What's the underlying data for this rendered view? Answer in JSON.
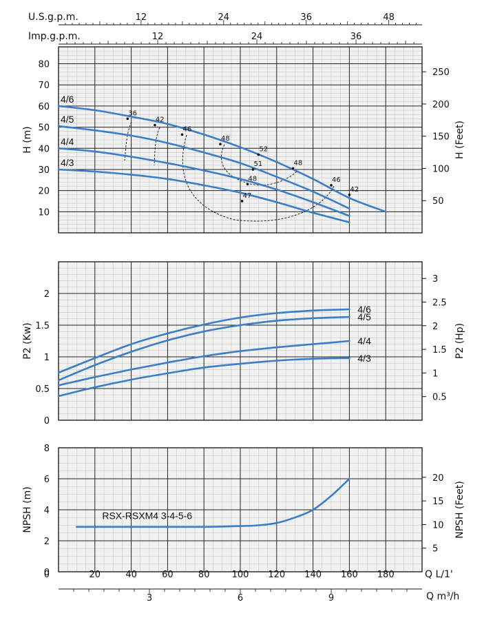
{
  "chart_data": {
    "type": "line",
    "top_axes": [
      {
        "label": "U.S.g.p.m.",
        "ticks": [
          12,
          24,
          36,
          48
        ],
        "lpm_per_unit": 3.785
      },
      {
        "label": "Imp.g.p.m.",
        "ticks": [
          12,
          24,
          36
        ],
        "lpm_per_unit": 4.546
      }
    ],
    "bottom_axes": [
      {
        "label": "Q L/1'",
        "ticks": [
          0,
          20,
          40,
          60,
          80,
          100,
          120,
          140,
          160,
          180
        ]
      },
      {
        "label": "Q m³/h",
        "ticks": [
          3,
          6,
          9
        ]
      }
    ],
    "panels": [
      {
        "id": "head",
        "ylabel": "H (m)",
        "ylim": [
          0,
          88
        ],
        "yticks": [
          10,
          20,
          30,
          40,
          50,
          60,
          70,
          80
        ],
        "y2label": "H (Feet)",
        "y2ticks": [
          50,
          100,
          150,
          200,
          250
        ],
        "series": [
          {
            "name": "4/6",
            "x": [
              0,
              20,
              40,
              60,
              80,
              100,
              120,
              140,
              160,
              180
            ],
            "y": [
              60,
              58,
              55,
              51.5,
              46.5,
              40.5,
              33.5,
              25.5,
              16.5,
              10
            ]
          },
          {
            "name": "4/5",
            "x": [
              0,
              20,
              40,
              60,
              80,
              100,
              120,
              140,
              160
            ],
            "y": [
              50.5,
              48.5,
              46,
              42.5,
              38,
              33,
              26.5,
              19.5,
              11.5
            ]
          },
          {
            "name": "4/4",
            "x": [
              0,
              20,
              40,
              60,
              80,
              100,
              120,
              140,
              160
            ],
            "y": [
              40,
              38.5,
              36,
              33,
              29.5,
              25.5,
              20.5,
              14.5,
              8
            ]
          },
          {
            "name": "4/3",
            "x": [
              0,
              20,
              40,
              60,
              80,
              100,
              120,
              140,
              160
            ],
            "y": [
              30,
              29,
              27.5,
              25.5,
              22.5,
              19,
              14.5,
              9.5,
              5
            ]
          }
        ],
        "efficiency_labels": [
          {
            "text": "36",
            "x": 38,
            "y": 54
          },
          {
            "text": "42",
            "x": 53,
            "y": 51
          },
          {
            "text": "46",
            "x": 68,
            "y": 46.5
          },
          {
            "text": "48",
            "x": 89,
            "y": 42
          },
          {
            "text": "52",
            "x": 110,
            "y": 37
          },
          {
            "text": "51",
            "x": 107,
            "y": 30
          },
          {
            "text": "48",
            "x": 104,
            "y": 23
          },
          {
            "text": "48",
            "x": 129,
            "y": 30.5
          },
          {
            "text": "46",
            "x": 150,
            "y": 22.5
          },
          {
            "text": "42",
            "x": 160,
            "y": 18
          },
          {
            "text": "47",
            "x": 101,
            "y": 15
          }
        ]
      },
      {
        "id": "power",
        "ylabel": "P2 (Kw)",
        "ylim": [
          0,
          2.5
        ],
        "yticks": [
          0,
          0.5,
          1,
          1.5,
          2
        ],
        "y2label": "P2 (Hp)",
        "y2ticks": [
          0.5,
          1,
          1.5,
          2,
          2.5,
          3
        ],
        "series": [
          {
            "name": "4/6",
            "x": [
              0,
              20,
              40,
              60,
              80,
              100,
              120,
              140,
              160
            ],
            "y": [
              0.75,
              0.98,
              1.2,
              1.37,
              1.51,
              1.62,
              1.69,
              1.73,
              1.75
            ]
          },
          {
            "name": "4/5",
            "x": [
              0,
              20,
              40,
              60,
              80,
              100,
              120,
              140,
              160
            ],
            "y": [
              0.63,
              0.87,
              1.08,
              1.26,
              1.4,
              1.5,
              1.57,
              1.61,
              1.63
            ]
          },
          {
            "name": "4/4",
            "x": [
              0,
              20,
              40,
              60,
              80,
              100,
              120,
              140,
              160
            ],
            "y": [
              0.55,
              0.68,
              0.8,
              0.91,
              1.01,
              1.09,
              1.15,
              1.2,
              1.25
            ]
          },
          {
            "name": "4/3",
            "x": [
              0,
              20,
              40,
              60,
              80,
              100,
              120,
              140,
              160
            ],
            "y": [
              0.38,
              0.52,
              0.64,
              0.74,
              0.83,
              0.89,
              0.94,
              0.97,
              0.98
            ]
          }
        ]
      },
      {
        "id": "npsh",
        "ylabel": "NPSH (m)",
        "ylim": [
          0,
          8
        ],
        "yticks": [
          0,
          2,
          4,
          6,
          8
        ],
        "y2label": "NPSH (Feet)",
        "y2ticks": [
          5,
          10,
          15,
          20
        ],
        "series": [
          {
            "name": "RSX-RSXM4 3-4-5-6",
            "x": [
              10,
              40,
              80,
              100,
              110,
              120,
              130,
              140,
              150,
              160
            ],
            "y": [
              2.9,
              2.9,
              2.9,
              2.95,
              3.0,
              3.15,
              3.5,
              4.0,
              4.9,
              6.0
            ]
          }
        ]
      }
    ]
  }
}
